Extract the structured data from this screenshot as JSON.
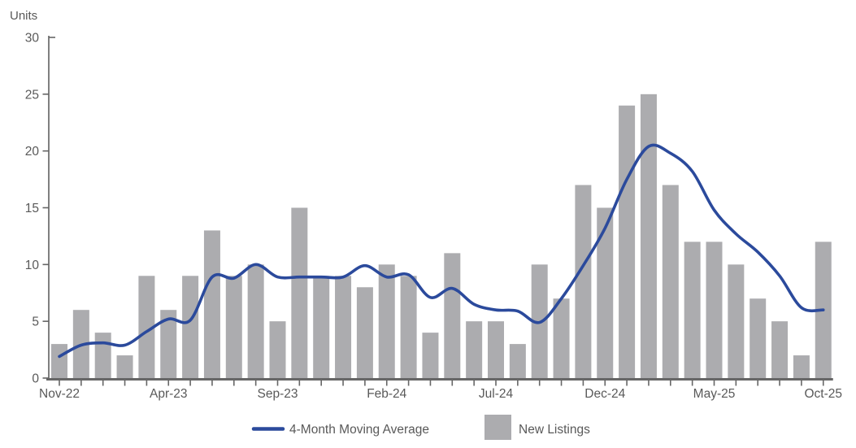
{
  "chart_data": {
    "type": "combo",
    "title": "",
    "ylabel": "Units",
    "xlabel": "",
    "ylim": [
      0,
      30
    ],
    "yticks": [
      0,
      5,
      10,
      15,
      20,
      25,
      30
    ],
    "grid": false,
    "legend_position": "bottom",
    "categories": [
      "Nov-22",
      "Dec-22",
      "Jan-23",
      "Feb-23",
      "Mar-23",
      "Apr-23",
      "May-23",
      "Jun-23",
      "Jul-23",
      "Aug-23",
      "Sep-23",
      "Oct-23",
      "Nov-23",
      "Dec-23",
      "Jan-24",
      "Feb-24",
      "Mar-24",
      "Apr-24",
      "May-24",
      "Jun-24",
      "Jul-24",
      "Aug-24",
      "Sep-24",
      "Oct-24",
      "Nov-24",
      "Dec-24",
      "Jan-25",
      "Feb-25",
      "Mar-25",
      "Apr-25",
      "May-25",
      "Jun-25",
      "Jul-25",
      "Aug-25",
      "Sep-25",
      "Oct-25"
    ],
    "x_tick_labels_visible": [
      "Nov-22",
      "Apr-23",
      "Sep-23",
      "Feb-24",
      "Jul-24",
      "Dec-24",
      "May-25",
      "Oct-25"
    ],
    "x_label_every_n_months": 5,
    "series": [
      {
        "name": "New Listings",
        "type": "bar",
        "color": "#ACACAF",
        "values": [
          3,
          6,
          4,
          2,
          9,
          6,
          9,
          13,
          9,
          10,
          5,
          15,
          9,
          9,
          8,
          10,
          9,
          4,
          11,
          5,
          5,
          3,
          10,
          7,
          17,
          15,
          24,
          25,
          17,
          12,
          12,
          10,
          7,
          5,
          2,
          12
        ]
      },
      {
        "name": "4-Month Moving Average",
        "type": "line",
        "color": "#2B4A9C",
        "values": [
          1.9,
          2.9,
          3.1,
          2.9,
          4.1,
          5.2,
          5.1,
          8.9,
          8.8,
          10.0,
          8.9,
          8.9,
          8.9,
          8.9,
          9.9,
          8.9,
          9.1,
          7.1,
          7.9,
          6.5,
          6.0,
          5.9,
          4.9,
          7.0,
          9.9,
          13.2,
          17.5,
          20.4,
          19.8,
          18.2,
          14.8,
          12.7,
          11.1,
          9.0,
          6.2,
          6.0
        ]
      }
    ]
  },
  "legend": {
    "line_label": "4-Month Moving Average",
    "bar_label": "New Listings"
  },
  "colors": {
    "bar_fill": "#ACACAF",
    "line_stroke": "#2B4A9C",
    "y_axis_line": "#7F7F7F",
    "x_axis_line": "#666666",
    "tick_stroke": "#666666",
    "label_text": "#595959"
  }
}
